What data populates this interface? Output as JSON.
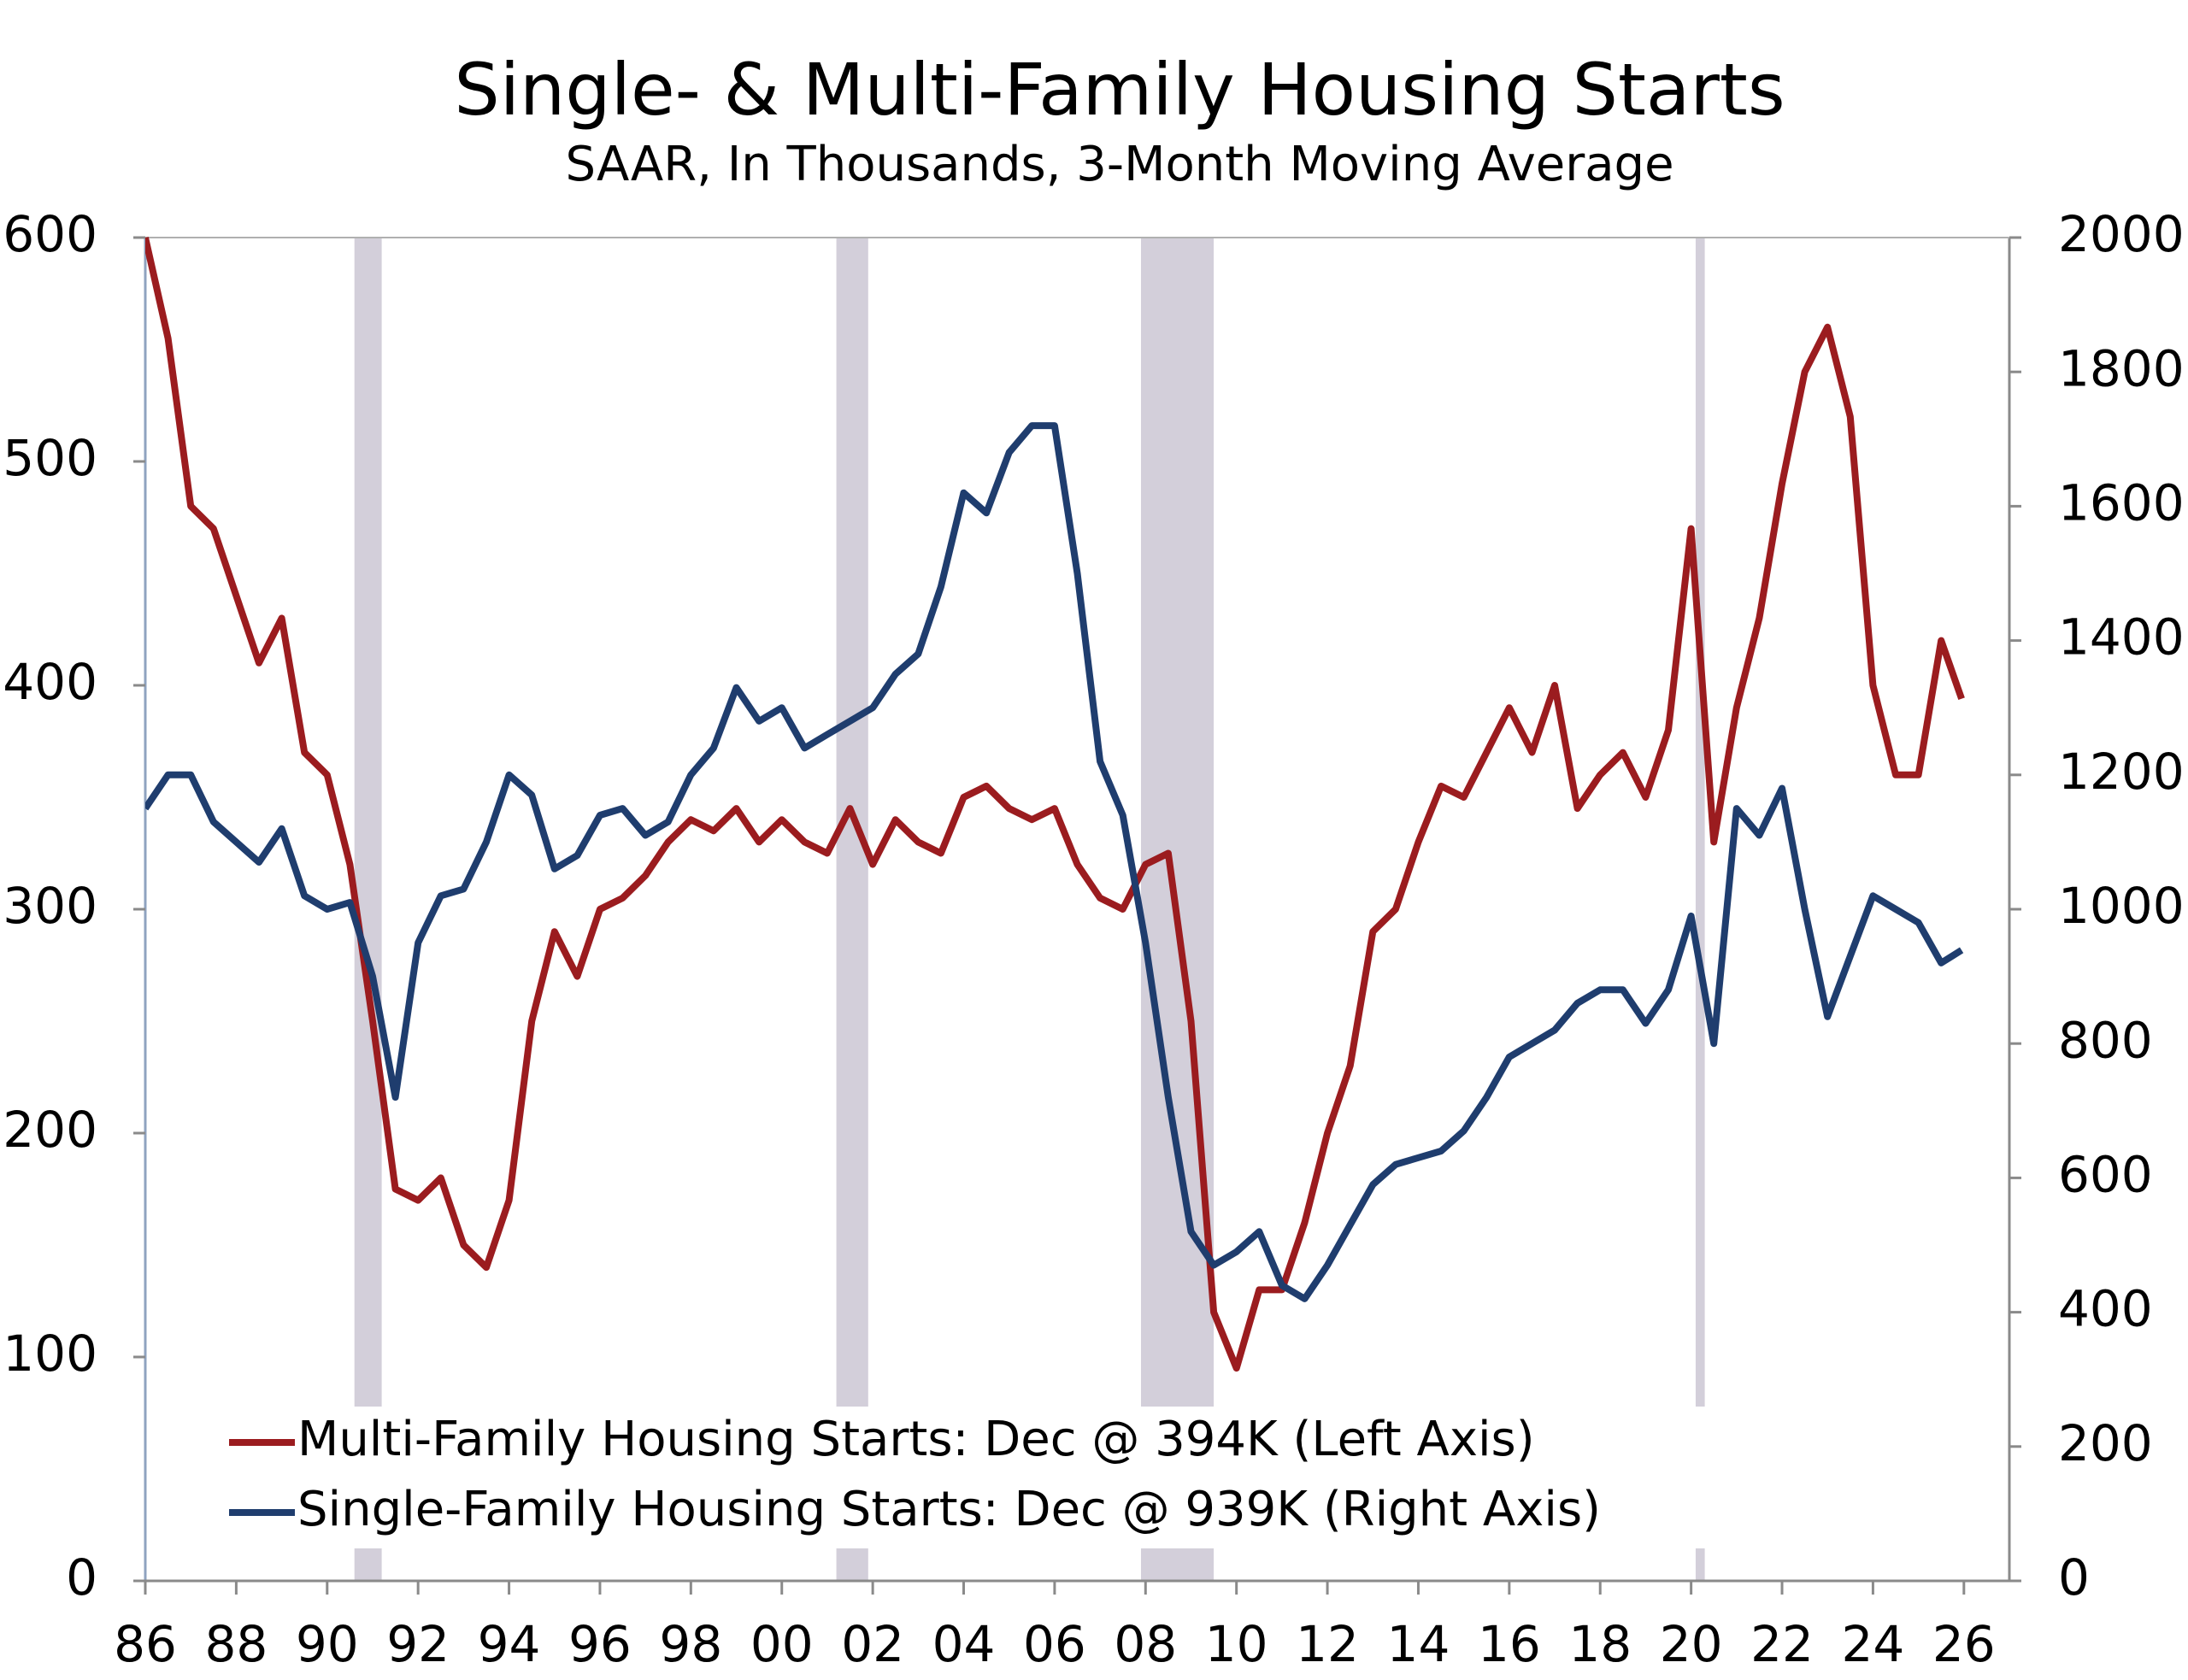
{
  "chart_data": {
    "type": "line",
    "title": "Single- & Multi-Family Housing Starts",
    "subtitle": "SAAR, In Thousands, 3-Month Moving Average",
    "x": [
      1986.0,
      1986.5,
      1987.0,
      1987.5,
      1988.0,
      1988.5,
      1989.0,
      1989.5,
      1990.0,
      1990.5,
      1991.0,
      1991.5,
      1992.0,
      1992.5,
      1993.0,
      1993.5,
      1994.0,
      1994.5,
      1995.0,
      1995.5,
      1996.0,
      1996.5,
      1997.0,
      1997.5,
      1998.0,
      1998.5,
      1999.0,
      1999.5,
      2000.0,
      2000.5,
      2001.0,
      2001.5,
      2002.0,
      2002.5,
      2003.0,
      2003.5,
      2004.0,
      2004.5,
      2005.0,
      2005.5,
      2006.0,
      2006.5,
      2007.0,
      2007.5,
      2008.0,
      2008.5,
      2009.0,
      2009.5,
      2010.0,
      2010.5,
      2011.0,
      2011.5,
      2012.0,
      2012.5,
      2013.0,
      2013.5,
      2014.0,
      2014.5,
      2015.0,
      2015.5,
      2016.0,
      2016.5,
      2017.0,
      2017.5,
      2018.0,
      2018.5,
      2019.0,
      2019.5,
      2020.0,
      2020.5,
      2021.0,
      2021.5,
      2022.0,
      2022.5,
      2023.0,
      2023.5,
      2024.0,
      2024.5,
      2025.0,
      2025.5,
      2025.95
    ],
    "series": [
      {
        "name": "Multi-Family Housing Starts: Dec @ 394K (Left Axis)",
        "color": "#9b1c1f",
        "values": [
          600,
          555,
          480,
          470,
          440,
          410,
          430,
          370,
          360,
          320,
          250,
          175,
          170,
          180,
          150,
          140,
          170,
          250,
          290,
          270,
          300,
          305,
          315,
          330,
          340,
          335,
          345,
          330,
          340,
          330,
          325,
          345,
          320,
          340,
          330,
          325,
          350,
          355,
          345,
          340,
          345,
          320,
          305,
          300,
          320,
          325,
          250,
          120,
          95,
          130,
          130,
          160,
          200,
          230,
          290,
          300,
          330,
          355,
          350,
          370,
          390,
          370,
          400,
          345,
          360,
          370,
          350,
          380,
          470,
          330,
          390,
          430,
          490,
          540,
          560,
          520,
          400,
          360,
          360,
          420,
          394
        ]
      },
      {
        "name": "Single-Family Housing Starts: Dec @ 939K (Right Axis)",
        "color": "#1f3d6e",
        "axis": "y2",
        "values": [
          1150,
          1200,
          1200,
          1130,
          1100,
          1070,
          1120,
          1020,
          1000,
          1010,
          900,
          720,
          950,
          1020,
          1030,
          1100,
          1200,
          1170,
          1060,
          1080,
          1140,
          1150,
          1110,
          1130,
          1200,
          1240,
          1330,
          1280,
          1300,
          1240,
          1260,
          1280,
          1300,
          1350,
          1380,
          1480,
          1620,
          1590,
          1680,
          1720,
          1720,
          1500,
          1220,
          1140,
          950,
          720,
          520,
          470,
          490,
          520,
          440,
          420,
          470,
          530,
          590,
          620,
          630,
          640,
          670,
          720,
          780,
          800,
          820,
          860,
          880,
          880,
          830,
          880,
          990,
          800,
          1150,
          1110,
          1180,
          1000,
          840,
          930,
          1020,
          1000,
          980,
          920,
          939
        ]
      }
    ],
    "xlim": [
      1986,
      2027
    ],
    "xticks": [
      {
        "value": 1986,
        "label": "86"
      },
      {
        "value": 1988,
        "label": "88"
      },
      {
        "value": 1990,
        "label": "90"
      },
      {
        "value": 1992,
        "label": "92"
      },
      {
        "value": 1994,
        "label": "94"
      },
      {
        "value": 1996,
        "label": "96"
      },
      {
        "value": 1998,
        "label": "98"
      },
      {
        "value": 2000,
        "label": "00"
      },
      {
        "value": 2002,
        "label": "02"
      },
      {
        "value": 2004,
        "label": "04"
      },
      {
        "value": 2006,
        "label": "06"
      },
      {
        "value": 2008,
        "label": "08"
      },
      {
        "value": 2010,
        "label": "10"
      },
      {
        "value": 2012,
        "label": "12"
      },
      {
        "value": 2014,
        "label": "14"
      },
      {
        "value": 2016,
        "label": "16"
      },
      {
        "value": 2018,
        "label": "18"
      },
      {
        "value": 2020,
        "label": "20"
      },
      {
        "value": 2022,
        "label": "22"
      },
      {
        "value": 2024,
        "label": "24"
      },
      {
        "value": 2026,
        "label": "26"
      }
    ],
    "ylim": [
      0,
      600
    ],
    "yticks": [
      0,
      100,
      200,
      300,
      400,
      500,
      600
    ],
    "y2lim": [
      0,
      2000
    ],
    "y2ticks": [
      0,
      200,
      400,
      600,
      800,
      1000,
      1200,
      1400,
      1600,
      1800,
      2000
    ],
    "recessions": [
      [
        1990.6,
        1991.2
      ],
      [
        2001.2,
        2001.9
      ],
      [
        2007.9,
        2009.5
      ],
      [
        2020.1,
        2020.3
      ]
    ],
    "recession_color": "#d3cfda"
  }
}
